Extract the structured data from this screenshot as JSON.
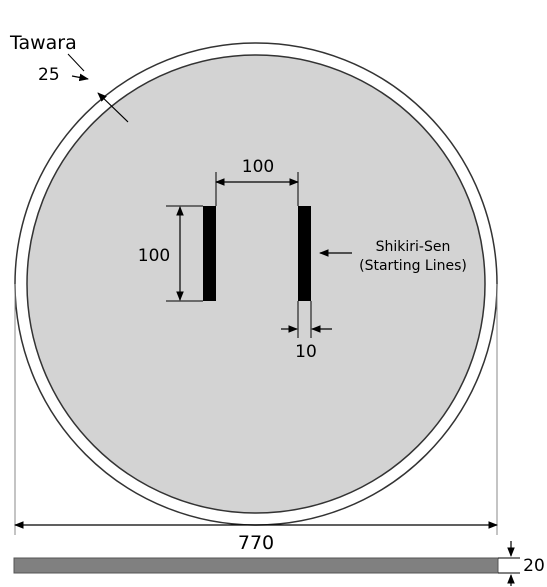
{
  "labels": {
    "tawara": "Tawara",
    "tawara_width": "25",
    "line_gap": "100",
    "line_length": "100",
    "line_width": "10",
    "starting_lines_name": "Shikiri-Sen",
    "starting_lines_desc": "(Starting Lines)",
    "ring_diameter": "770",
    "ring_height": "20"
  },
  "colors": {
    "ring_fill": "#d3d3d3",
    "outline": "#333333",
    "lines": "#000000",
    "base": "#808080"
  }
}
